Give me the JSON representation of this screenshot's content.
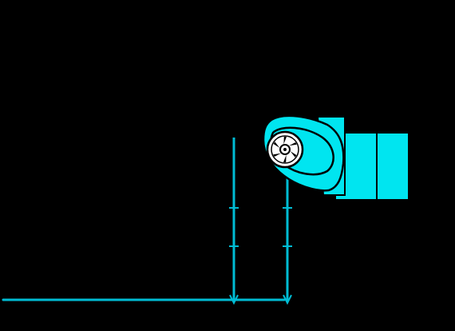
{
  "colors": {
    "background": "#000000",
    "accent": "#00e5f0",
    "line": "#00bcd4",
    "stroke": "#000000",
    "wheel": "#ffffff"
  },
  "labels": []
}
